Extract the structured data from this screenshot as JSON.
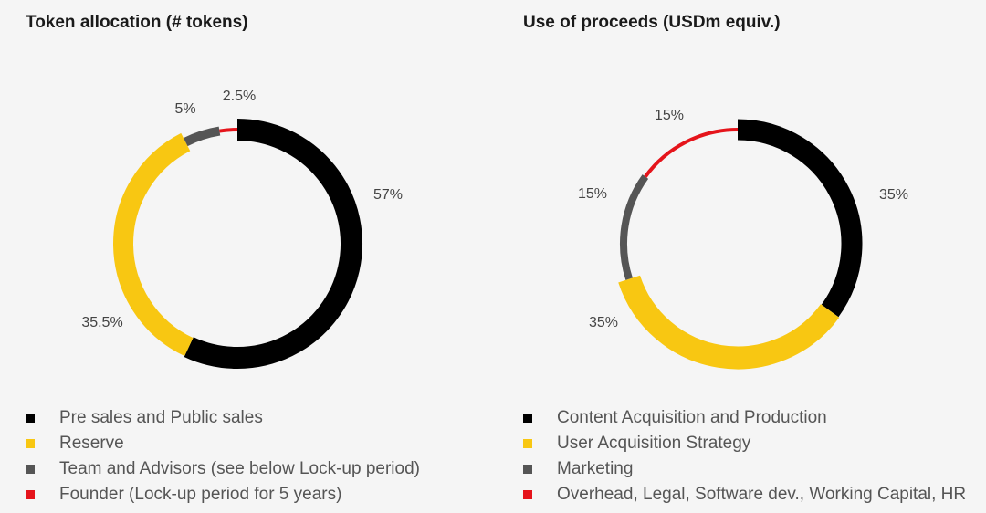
{
  "chart_data": [
    {
      "type": "pie",
      "variant": "donut",
      "title": "Token allocation (# tokens)",
      "categories": [
        "Pre sales and Public sales",
        "Reserve",
        "Team and Advisors (see below Lock-up period)",
        "Founder (Lock-up period for 5 years)"
      ],
      "values": [
        57,
        35.5,
        5,
        2.5
      ],
      "labels": [
        "57%",
        "35.5%",
        "5%",
        "2.5%"
      ],
      "colors": [
        "#000000",
        "#f8c712",
        "#555555",
        "#e5141b"
      ]
    },
    {
      "type": "pie",
      "variant": "donut",
      "title": "Use of proceeds (USDm equiv.)",
      "categories": [
        "Content Acquisition and Production",
        "User Acquisition Strategy",
        "Marketing",
        "Overhead, Legal, Software dev., Working Capital, HR"
      ],
      "values": [
        35,
        35,
        15,
        15
      ],
      "labels": [
        "35%",
        "35%",
        "15%",
        "15%"
      ],
      "colors": [
        "#000000",
        "#f8c712",
        "#555555",
        "#e5141b"
      ]
    }
  ]
}
